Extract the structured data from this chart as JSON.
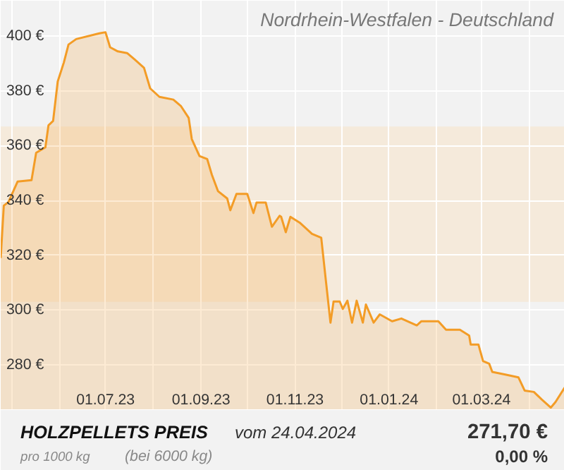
{
  "chart_data": {
    "type": "area",
    "title": "HOLZPELLETS PREIS",
    "subtitle": "vom 24.04.2024",
    "annotations": [
      "Nordrhein-Westfalen - Deutschland",
      "pro 1000 kg",
      "(bei 6000 kg)",
      "271,70 €",
      "0,00 %"
    ],
    "x": [
      "2023-04-24",
      "2023-04-26",
      "2023-04-29",
      "2023-05-05",
      "2023-05-14",
      "2023-05-17",
      "2023-05-23",
      "2023-05-25",
      "2023-05-28",
      "2023-05-31",
      "2023-06-04",
      "2023-06-07",
      "2023-06-12",
      "2023-06-27",
      "2023-07-01",
      "2023-07-04",
      "2023-07-09",
      "2023-07-15",
      "2023-07-20",
      "2023-07-26",
      "2023-07-30",
      "2023-08-05",
      "2023-08-14",
      "2023-08-19",
      "2023-08-24",
      "2023-08-26",
      "2023-08-31",
      "2023-09-05",
      "2023-09-08",
      "2023-09-12",
      "2023-09-18",
      "2023-09-20",
      "2023-09-24",
      "2023-10-01",
      "2023-10-05",
      "2023-10-07",
      "2023-10-13",
      "2023-10-17",
      "2023-10-22",
      "2023-10-23",
      "2023-10-26",
      "2023-10-29",
      "2023-11-04",
      "2023-11-12",
      "2023-11-18",
      "2023-11-21",
      "2023-11-24",
      "2023-11-26",
      "2023-11-30",
      "2023-12-02",
      "2023-12-05",
      "2023-12-08",
      "2023-12-11",
      "2023-12-15",
      "2023-12-17",
      "2023-12-22",
      "2023-12-26",
      "2024-01-03",
      "2024-01-09",
      "2024-01-19",
      "2024-01-22",
      "2024-02-02",
      "2024-02-07",
      "2024-02-16",
      "2024-02-22",
      "2024-02-23",
      "2024-02-28",
      "2024-03-02",
      "2024-03-06",
      "2024-03-08",
      "2024-03-17",
      "2024-03-25",
      "2024-03-29",
      "2024-04-04",
      "2024-04-09",
      "2024-04-15",
      "2024-04-18",
      "2024-04-24"
    ],
    "series": [
      {
        "color": "#f39c26",
        "values": [
          319,
          338.1,
          339.4,
          346.9,
          347.4,
          357.4,
          359.4,
          367.4,
          369,
          383.4,
          390.4,
          396.9,
          398.9,
          401,
          401.4,
          395.9,
          394.4,
          393.8,
          391.4,
          388.4,
          380.9,
          377.8,
          376.8,
          374.4,
          370.1,
          362.4,
          356.2,
          355.1,
          349.4,
          343.4,
          340.7,
          336.4,
          342.4,
          342.4,
          335.4,
          339.2,
          339.2,
          330.4,
          334.4,
          334,
          328.4,
          334,
          331.9,
          327.8,
          326.4,
          310.8,
          295.4,
          303.1,
          303.1,
          300.4,
          303.4,
          295.4,
          303.4,
          295.4,
          302,
          295.4,
          298.4,
          295.9,
          296.9,
          294.4,
          295.9,
          295.9,
          292.8,
          292.8,
          290.7,
          287.4,
          287.4,
          281.4,
          280.4,
          277.4,
          276.4,
          275.4,
          270.6,
          270.1,
          267.4,
          264.4,
          266.4,
          271.7
        ]
      }
    ],
    "xlim": [
      "2023-04-24",
      "2024-04-24"
    ],
    "ylim": [
      263.5,
      412.9
    ],
    "xticks": [
      {
        "value": "2023-05-01",
        "label": null
      },
      {
        "value": "2023-06-01",
        "label": null
      },
      {
        "value": "2023-07-01",
        "label": "01.07.23"
      },
      {
        "value": "2023-08-01",
        "label": null
      },
      {
        "value": "2023-09-01",
        "label": "01.09.23"
      },
      {
        "value": "2023-10-01",
        "label": null
      },
      {
        "value": "2023-11-01",
        "label": "01.11.23"
      },
      {
        "value": "2023-12-01",
        "label": null
      },
      {
        "value": "2024-01-01",
        "label": "01.01.24"
      },
      {
        "value": "2024-02-01",
        "label": null
      },
      {
        "value": "2024-03-01",
        "label": "01.03.24"
      },
      {
        "value": "2024-04-01",
        "label": null
      }
    ],
    "yticks": [
      {
        "value": 280,
        "label": "280 €"
      },
      {
        "value": 300,
        "label": "300 €"
      },
      {
        "value": 320,
        "label": "320 €"
      },
      {
        "value": 340,
        "label": "340 €"
      },
      {
        "value": 360,
        "label": "360 €"
      },
      {
        "value": 380,
        "label": "380 €"
      },
      {
        "value": 400,
        "label": "400 €"
      }
    ],
    "bands": [
      {
        "axis": "y",
        "from": 303,
        "to": 367,
        "color": "#f5eadb"
      }
    ],
    "grid": true
  }
}
